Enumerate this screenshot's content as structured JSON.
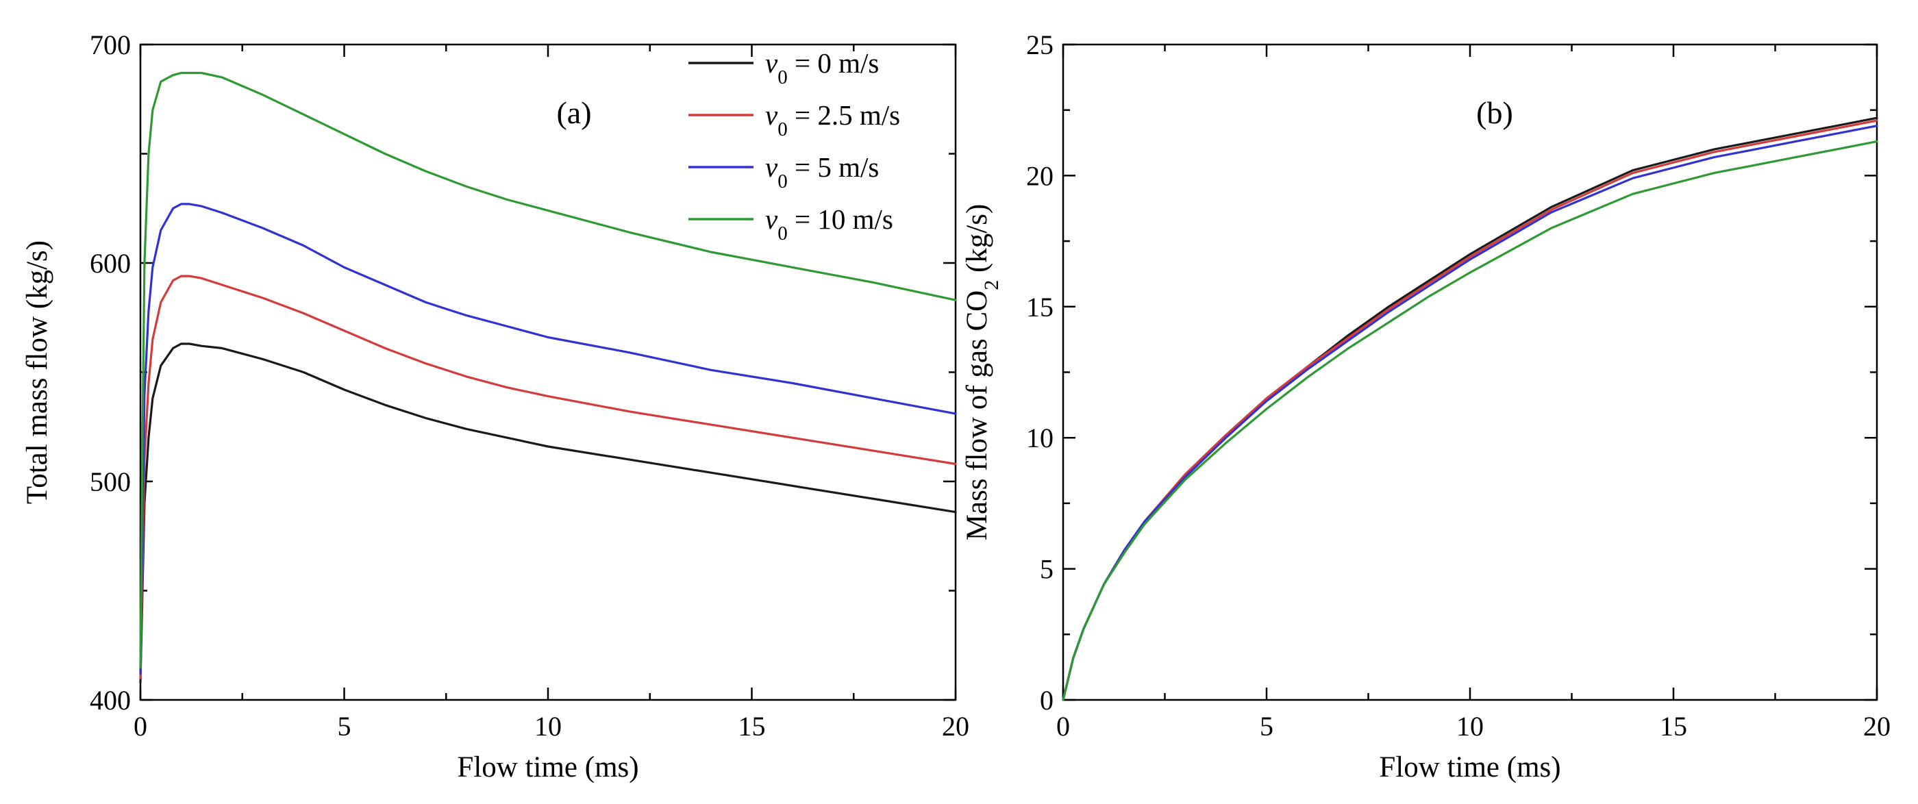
{
  "chart_data": [
    {
      "type": "line",
      "panel_label": "(a)",
      "xlabel": "Flow time (ms)",
      "ylabel": "Total mass flow (kg/s)",
      "xlim": [
        0,
        20
      ],
      "ylim": [
        400,
        700
      ],
      "xticks": [
        0,
        5,
        10,
        15,
        20
      ],
      "yticks": [
        400,
        500,
        600,
        700
      ],
      "legend_position": "top-right",
      "series": [
        {
          "name": "v0 = 0 m/s",
          "legend": {
            "var": "v",
            "sub": "0",
            "rest": " = 0 m/s"
          },
          "color": "#1a1a1a",
          "x": [
            0,
            0.05,
            0.1,
            0.2,
            0.3,
            0.5,
            0.8,
            1.0,
            1.2,
            1.5,
            2,
            3,
            4,
            5,
            6,
            7,
            8,
            9,
            10,
            12,
            14,
            16,
            18,
            20
          ],
          "y": [
            408,
            450,
            490,
            520,
            538,
            553,
            561,
            563,
            563,
            562,
            561,
            556,
            550,
            542,
            535,
            529,
            524,
            520,
            516,
            510,
            504,
            498,
            492,
            486
          ]
        },
        {
          "name": "v0 = 2.5 m/s",
          "legend": {
            "var": "v",
            "sub": "0",
            "rest": " = 2.5 m/s"
          },
          "color": "#d43c3c",
          "x": [
            0,
            0.05,
            0.1,
            0.2,
            0.3,
            0.5,
            0.8,
            1.0,
            1.2,
            1.5,
            2,
            3,
            4,
            5,
            6,
            7,
            8,
            9,
            10,
            12,
            14,
            16,
            18,
            20
          ],
          "y": [
            410,
            460,
            510,
            545,
            565,
            582,
            592,
            594,
            594,
            593,
            590,
            584,
            577,
            569,
            561,
            554,
            548,
            543,
            539,
            532,
            526,
            520,
            514,
            508
          ]
        },
        {
          "name": "v0 = 5 m/s",
          "legend": {
            "var": "v",
            "sub": "0",
            "rest": " = 5 m/s"
          },
          "color": "#3232d2",
          "x": [
            0,
            0.05,
            0.1,
            0.2,
            0.3,
            0.5,
            0.8,
            1.0,
            1.2,
            1.5,
            2,
            3,
            4,
            5,
            6,
            7,
            8,
            9,
            10,
            12,
            14,
            16,
            18,
            20
          ],
          "y": [
            412,
            480,
            540,
            578,
            598,
            615,
            625,
            627,
            627,
            626,
            623,
            616,
            608,
            598,
            590,
            582,
            576,
            571,
            566,
            559,
            551,
            545,
            538,
            531
          ]
        },
        {
          "name": "v0 = 10 m/s",
          "legend": {
            "var": "v",
            "sub": "0",
            "rest": " = 10 m/s"
          },
          "color": "#2f9a34",
          "x": [
            0,
            0.05,
            0.1,
            0.2,
            0.3,
            0.5,
            0.8,
            1.0,
            1.2,
            1.5,
            2,
            3,
            4,
            5,
            6,
            7,
            8,
            9,
            10,
            12,
            14,
            16,
            18,
            20
          ],
          "y": [
            415,
            520,
            600,
            650,
            670,
            683,
            686,
            687,
            687,
            687,
            685,
            677,
            668,
            659,
            650,
            642,
            635,
            629,
            624,
            614,
            605,
            598,
            591,
            583
          ]
        }
      ]
    },
    {
      "type": "line",
      "panel_label": "(b)",
      "xlabel": "Flow time (ms)",
      "ylabel": "Mass flow of gas CO2 (kg/s)",
      "ylabel_parts": {
        "pre": "Mass flow of gas CO",
        "sub": "2",
        "post": " (kg/s)"
      },
      "xlim": [
        0,
        20
      ],
      "ylim": [
        0,
        25
      ],
      "xticks": [
        0,
        5,
        10,
        15,
        20
      ],
      "yticks": [
        0,
        5,
        10,
        15,
        20,
        25
      ],
      "series": [
        {
          "name": "v0 = 0 m/s",
          "color": "#1a1a1a",
          "x": [
            0,
            0.25,
            0.5,
            1,
            1.5,
            2,
            3,
            4,
            5,
            6,
            7,
            8,
            9,
            10,
            12,
            14,
            16,
            18,
            20
          ],
          "y": [
            0,
            1.6,
            2.7,
            4.4,
            5.7,
            6.8,
            8.6,
            10.1,
            11.5,
            12.7,
            13.9,
            15.0,
            16.0,
            17.0,
            18.8,
            20.2,
            21.0,
            21.6,
            22.2
          ]
        },
        {
          "name": "v0 = 2.5 m/s",
          "color": "#d43c3c",
          "x": [
            0,
            0.25,
            0.5,
            1,
            1.5,
            2,
            3,
            4,
            5,
            6,
            7,
            8,
            9,
            10,
            12,
            14,
            16,
            18,
            20
          ],
          "y": [
            0,
            1.6,
            2.7,
            4.4,
            5.7,
            6.8,
            8.6,
            10.1,
            11.5,
            12.7,
            13.8,
            14.9,
            15.9,
            16.9,
            18.7,
            20.1,
            20.9,
            21.5,
            22.1
          ]
        },
        {
          "name": "v0 = 5 m/s",
          "color": "#3232d2",
          "x": [
            0,
            0.25,
            0.5,
            1,
            1.5,
            2,
            3,
            4,
            5,
            6,
            7,
            8,
            9,
            10,
            12,
            14,
            16,
            18,
            20
          ],
          "y": [
            0,
            1.6,
            2.7,
            4.4,
            5.7,
            6.8,
            8.5,
            10.0,
            11.4,
            12.6,
            13.7,
            14.8,
            15.8,
            16.8,
            18.6,
            19.9,
            20.7,
            21.3,
            21.9
          ]
        },
        {
          "name": "v0 = 10 m/s",
          "color": "#2f9a34",
          "x": [
            0,
            0.25,
            0.5,
            1,
            1.5,
            2,
            3,
            4,
            5,
            6,
            7,
            8,
            9,
            10,
            12,
            14,
            16,
            18,
            20
          ],
          "y": [
            0,
            1.6,
            2.7,
            4.4,
            5.6,
            6.7,
            8.4,
            9.8,
            11.1,
            12.3,
            13.4,
            14.4,
            15.4,
            16.3,
            18.0,
            19.3,
            20.1,
            20.7,
            21.3
          ]
        }
      ]
    }
  ]
}
